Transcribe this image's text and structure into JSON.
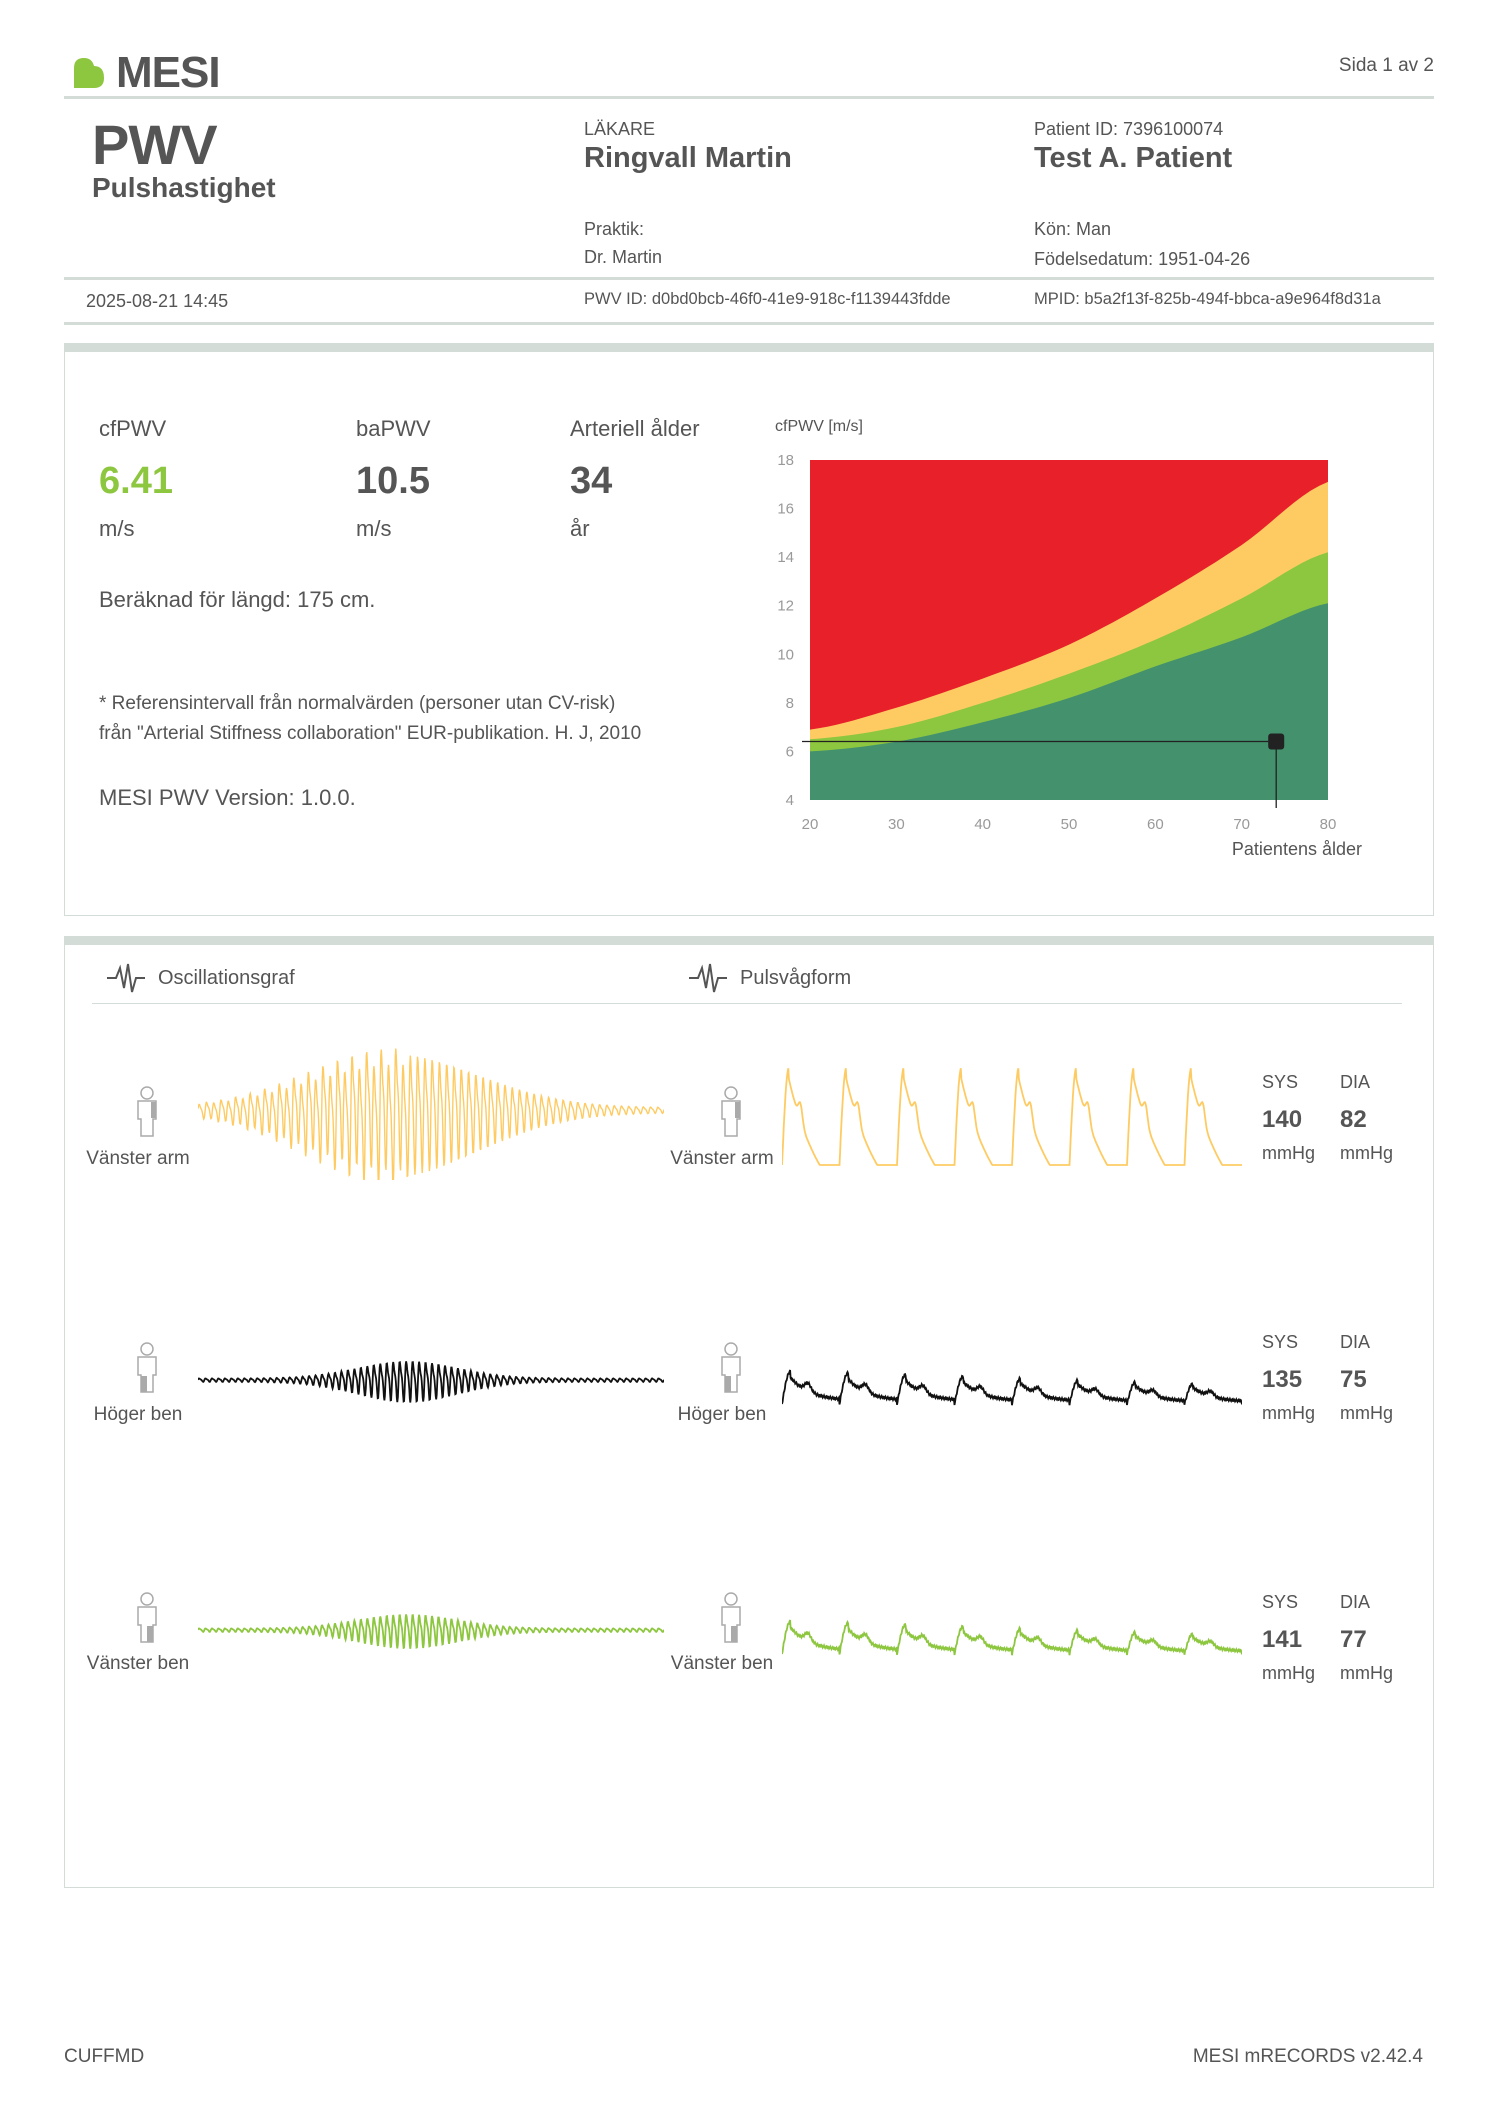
{
  "header": {
    "brand": "MESI",
    "page": "Sida 1 av 2",
    "title": "PWV",
    "subtitle": "Pulshastighet",
    "doctor_label": "LÄKARE",
    "doctor_name": "Ringvall Martin",
    "practice_label": "Praktik:",
    "practice_name": "Dr. Martin",
    "patient_id_label": "Patient ID: 7396100074",
    "patient_name": "Test A. Patient",
    "sex": "Kön: Man",
    "birthdate": "Födelsedatum: 1951-04-26",
    "datetime": "2025-08-21 14:45",
    "pwv_id": "PWV ID: d0bd0bcb-46f0-41e9-918c-f1139443fdde",
    "mpid": "MPID: b5a2f13f-825b-494f-bbca-a9e964f8d31a"
  },
  "results": {
    "cfpwv_label": "cfPWV",
    "cfpwv_value": "6.41",
    "cfpwv_unit": "m/s",
    "bapwv_label": "baPWV",
    "bapwv_value": "10.5",
    "bapwv_unit": "m/s",
    "age_label": "Arteriell ålder",
    "age_value": "34",
    "age_unit": "år",
    "height_note": "Beräknad för längd: 175 cm.",
    "reference_line1": "* Referensintervall från normalvärden (personer utan CV-risk)",
    "reference_line2": "från \"Arterial Stiffness collaboration\" EUR-publikation. H. J, 2010",
    "version": "MESI PWV Version: 1.0.0.",
    "value_color": "#8dc63f"
  },
  "chart_data": {
    "type": "area",
    "ylabel": "cfPWV [m/s]",
    "xlabel": "Patientens ålder",
    "xlim": [
      20,
      80
    ],
    "ylim": [
      4,
      18
    ],
    "xticks": [
      20,
      30,
      40,
      50,
      60,
      70,
      80
    ],
    "yticks": [
      4,
      6,
      8,
      10,
      12,
      14,
      16,
      18
    ],
    "x": [
      20,
      30,
      40,
      50,
      60,
      70,
      80
    ],
    "bands": [
      {
        "color": "#43916d",
        "upper": [
          6.0,
          6.4,
          7.2,
          8.2,
          9.5,
          10.7,
          12.1
        ]
      },
      {
        "color": "#8dc63f",
        "upper": [
          6.5,
          7.0,
          8.0,
          9.2,
          10.6,
          12.3,
          14.2
        ]
      },
      {
        "color": "#fecb63",
        "upper": [
          6.9,
          7.8,
          9.0,
          10.4,
          12.3,
          14.5,
          17.1
        ]
      },
      {
        "color": "#e8202a",
        "upper": [
          18,
          18,
          18,
          18,
          18,
          18,
          18
        ]
      }
    ],
    "patient_point": {
      "x": 74,
      "y": 6.41
    }
  },
  "waveforms": {
    "osc_title": "Oscillationsgraf",
    "pulse_title": "Pulsvågform",
    "limbs": [
      {
        "name": "Vänster arm",
        "color": "#fecb63",
        "sys_label": "SYS",
        "dia_label": "DIA",
        "sys": "140",
        "dia": "82",
        "sys_unit": "mmHg",
        "dia_unit": "mmHg"
      },
      {
        "name": "Höger ben",
        "color": "#111111",
        "sys_label": "SYS",
        "dia_label": "DIA",
        "sys": "135",
        "dia": "75",
        "sys_unit": "mmHg",
        "dia_unit": "mmHg"
      },
      {
        "name": "Vänster ben",
        "color": "#8dc63f",
        "sys_label": "SYS",
        "dia_label": "DIA",
        "sys": "141",
        "dia": "77",
        "sys_unit": "mmHg",
        "dia_unit": "mmHg"
      }
    ]
  },
  "footer": {
    "left": "CUFFMD",
    "right": "MESI mRECORDS v2.42.4"
  }
}
